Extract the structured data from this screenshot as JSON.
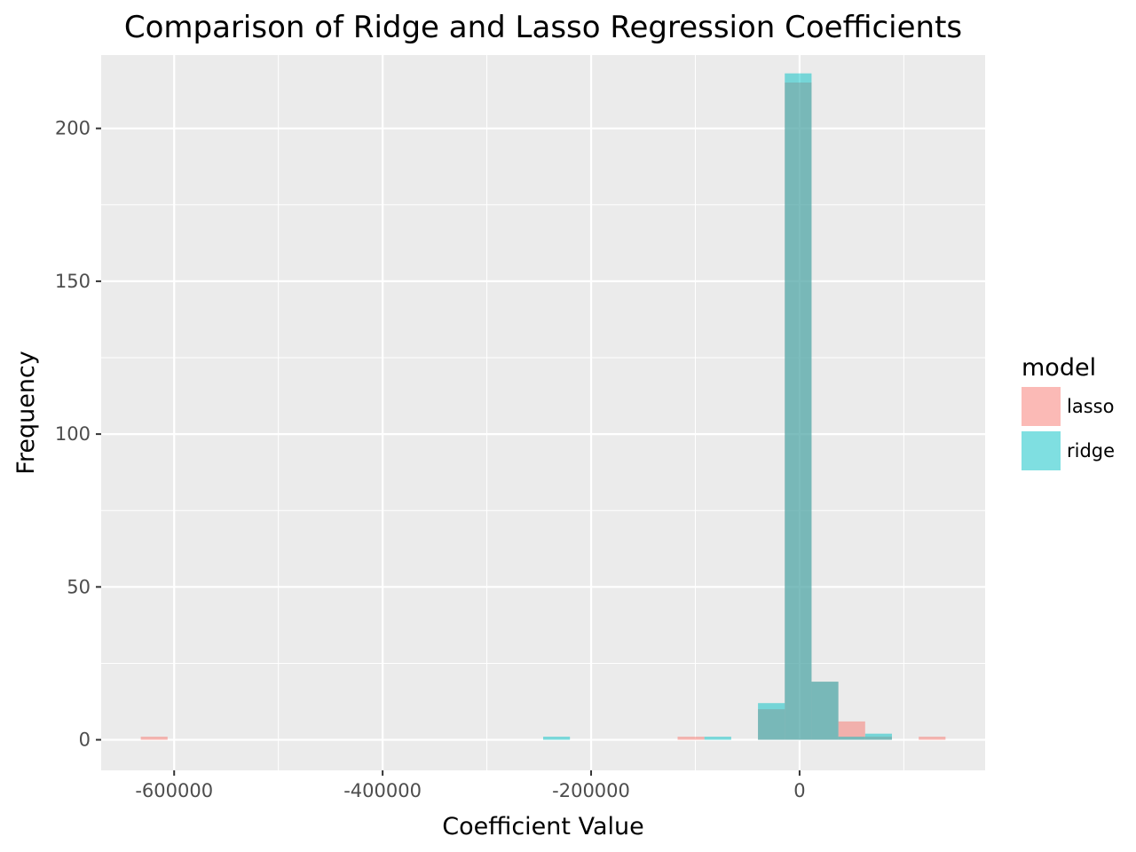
{
  "chart_data": {
    "type": "bar",
    "subtype": "overlaid-histogram",
    "title": "Comparison of Ridge and Lasso Regression Coefficients",
    "xlabel": "Coefficient Value",
    "ylabel": "Frequency",
    "xlim": [
      -670000,
      178000
    ],
    "ylim": [
      -10,
      224
    ],
    "x_ticks": [
      -600000,
      -400000,
      -200000,
      0
    ],
    "x_tick_labels": [
      "-600000",
      "-400000",
      "-200000",
      "0"
    ],
    "y_ticks": [
      0,
      50,
      100,
      150,
      200
    ],
    "y_tick_labels": [
      "0",
      "50",
      "100",
      "150",
      "200"
    ],
    "grid": true,
    "legend": {
      "title": "model",
      "position": "right",
      "entries": [
        "lasso",
        "ridge"
      ]
    },
    "bin_width": 25700,
    "series": [
      {
        "name": "lasso",
        "color": "#F8766D",
        "bins": [
          {
            "x0": -632000,
            "x1": -606300,
            "count": 1
          },
          {
            "x0": -117000,
            "x1": -91300,
            "count": 1
          },
          {
            "x0": -39900,
            "x1": -14200,
            "count": 10
          },
          {
            "x0": -14200,
            "x1": 11500,
            "count": 215
          },
          {
            "x0": 11500,
            "x1": 37200,
            "count": 19
          },
          {
            "x0": 37200,
            "x1": 62900,
            "count": 6
          },
          {
            "x0": 62900,
            "x1": 88600,
            "count": 1
          },
          {
            "x0": 114300,
            "x1": 140000,
            "count": 1
          }
        ]
      },
      {
        "name": "ridge",
        "color": "#00BFC4",
        "bins": [
          {
            "x0": -246000,
            "x1": -220300,
            "count": 1
          },
          {
            "x0": -91300,
            "x1": -65600,
            "count": 1
          },
          {
            "x0": -39900,
            "x1": -14200,
            "count": 12
          },
          {
            "x0": -14200,
            "x1": 11500,
            "count": 218
          },
          {
            "x0": 11500,
            "x1": 37200,
            "count": 19
          },
          {
            "x0": 37200,
            "x1": 62900,
            "count": 1
          },
          {
            "x0": 62900,
            "x1": 88600,
            "count": 2
          }
        ]
      }
    ]
  },
  "colors": {
    "panel_background": "#EBEBEB",
    "grid_major": "#FFFFFF",
    "lasso": "#F8766D",
    "ridge": "#00BFC4"
  }
}
